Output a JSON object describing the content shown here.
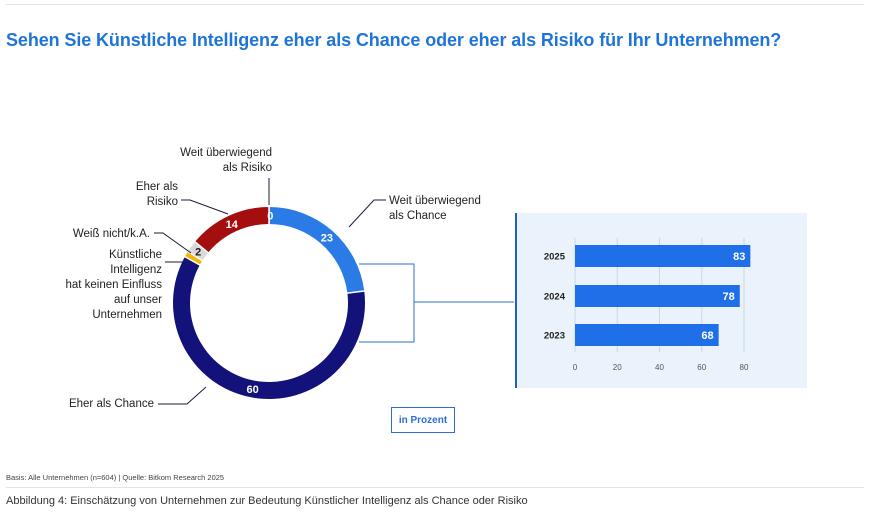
{
  "title": "Sehen Sie Künstliche Intelligenz eher als Chance oder eher als Risiko für Ihr Unternehmen?",
  "unit_label": "in Prozent",
  "source": "Basis: Alle Unternehmen (n=604) | Quelle: Bitkom Research 2025",
  "caption": "Abbildung 4: Einschätzung von Unternehmen zur Bedeutung Künstlicher Intelligenz als Chance oder Risiko",
  "labels": {
    "risk_far": [
      "Weit überwiegend",
      "als Risiko"
    ],
    "risk": [
      "Eher als",
      "Risiko"
    ],
    "dontknow": "Weiß nicht/k.A.",
    "noimpact": [
      "Künstliche",
      "Intelligenz",
      "hat keinen Einfluss",
      "auf unser",
      "Unternehmen"
    ],
    "chance_far": [
      "Weit überwiegend",
      "als Chance"
    ],
    "chance": "Eher als Chance"
  },
  "chart_data": [
    {
      "type": "pie",
      "donut": true,
      "title": "Sehen Sie Künstliche Intelligenz eher als Chance oder eher als Risiko für Ihr Unternehmen?",
      "categories": [
        "Weit überwiegend als Chance",
        "Eher als Chance",
        "Künstliche Intelligenz hat keinen Einfluss auf unser Unternehmen",
        "Weiß nicht/k.A.",
        "Eher als Risiko",
        "Weit überwiegend als Risiko"
      ],
      "values": [
        23,
        60,
        1,
        2,
        14,
        0
      ],
      "value_labels": [
        "23",
        "60",
        "",
        "2",
        "14",
        "0"
      ],
      "colors": [
        "#2b7be6",
        "#12127a",
        "#f2b705",
        "#d9d9d9",
        "#a50e0e",
        "#5c0000"
      ]
    },
    {
      "type": "bar",
      "orientation": "horizontal",
      "categories": [
        "2025",
        "2024",
        "2023"
      ],
      "values": [
        83,
        78,
        68
      ],
      "xlim": [
        0,
        80
      ],
      "ticks": [
        "0",
        "20",
        "40",
        "60",
        "80"
      ],
      "color": "#1f6fe8"
    }
  ]
}
